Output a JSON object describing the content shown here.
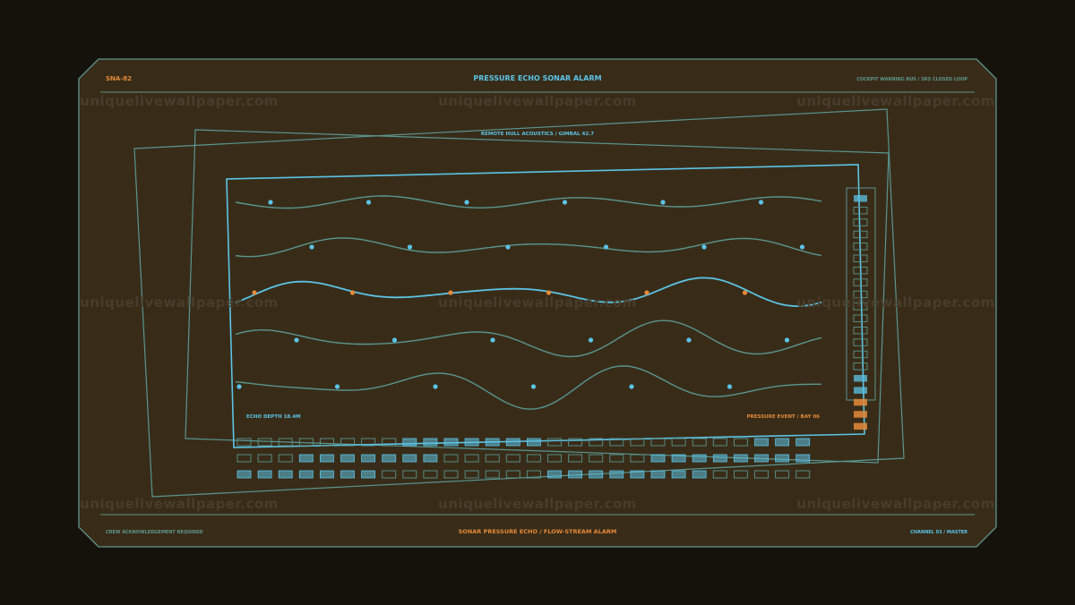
{
  "header": {
    "id_tag": "SNA-82",
    "title": "PRESSURE ECHO SONAR ALARM",
    "status": "COCKPIT WARNING BUS / SRS CLOSED LOOP"
  },
  "panel": {
    "caption": "REMOTE HULL ACOUSTICS / GIMBAL 42.7",
    "depth_readout": "ECHO DEPTH 18.4M",
    "event_readout": "PRESSURE EVENT / BAY 06"
  },
  "footer": {
    "left": "CREW ACKNOWLEDGEMENT REQUIRED",
    "center": "SONAR PRESSURE ECHO / FLOW-STREAM ALARM",
    "right": "CHANNEL 03 / MASTER"
  },
  "watermark": "uniquelivewallpaper.com",
  "colors": {
    "background": "#15110b",
    "frame_fill": "#382c18",
    "frame_stroke": "#5f958c",
    "cyan": "#5cc3e6",
    "orange": "#e58a3a",
    "teal_line": "#5a9590"
  },
  "level_meter": {
    "states": [
      "cyan",
      "off",
      "off",
      "off",
      "off",
      "off",
      "off",
      "off",
      "off",
      "off",
      "off",
      "off",
      "off",
      "off",
      "off",
      "cyan",
      "cyan",
      "orange",
      "orange",
      "orange"
    ]
  },
  "sequencer": {
    "rows": [
      [
        0,
        0,
        0,
        0,
        0,
        0,
        0,
        0,
        1,
        1,
        1,
        1,
        1,
        1,
        1,
        0,
        0,
        0,
        0,
        0,
        0,
        0,
        0,
        0,
        0,
        1,
        1,
        1
      ],
      [
        0,
        0,
        0,
        1,
        1,
        1,
        1,
        1,
        1,
        1,
        0,
        0,
        0,
        0,
        0,
        0,
        0,
        0,
        0,
        0,
        1,
        1,
        1,
        1,
        1,
        1,
        1,
        1
      ],
      [
        1,
        1,
        1,
        1,
        1,
        1,
        1,
        0,
        0,
        0,
        0,
        0,
        0,
        0,
        0,
        1,
        1,
        1,
        1,
        1,
        1,
        1,
        1,
        0,
        0,
        0,
        0,
        0
      ]
    ]
  }
}
